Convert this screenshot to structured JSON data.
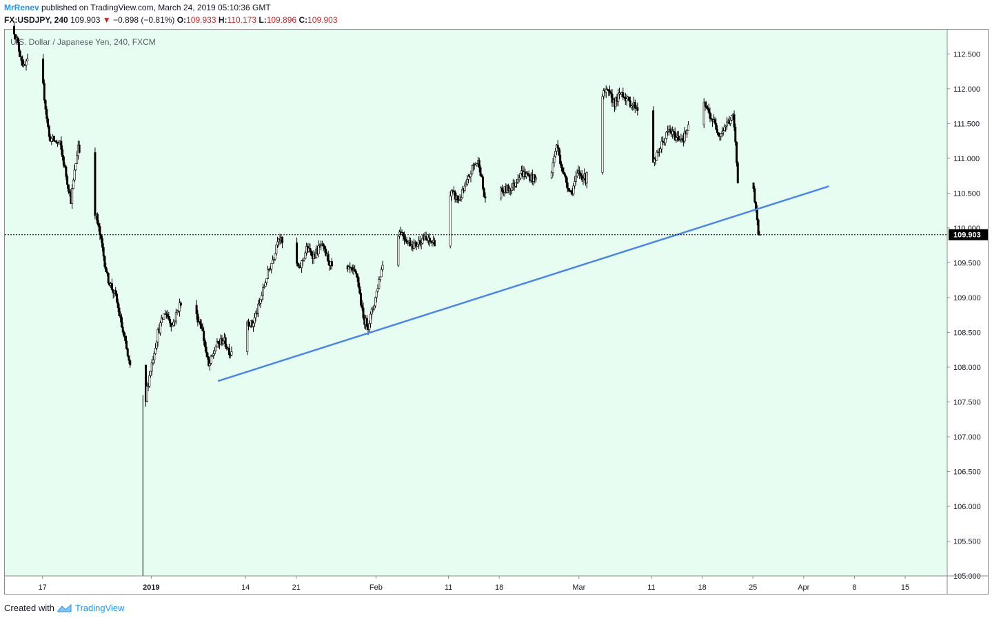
{
  "header": {
    "author": "MrRenev",
    "published": "published on TradingView.com, March 24, 2019 05:10:36 GMT"
  },
  "ohlc": {
    "symbol": "FX:USDJPY, 240",
    "last": "109.903",
    "arrow": "▼",
    "change": "−0.898 (−0.81%)",
    "o_label": "O:",
    "o": "109.933",
    "h_label": "H:",
    "h": "110.173",
    "l_label": "L:",
    "l": "109.896",
    "c_label": "C:",
    "c": "109.903"
  },
  "legend": "U.S. Dollar / Japanese Yen, 240, FXCM",
  "footer": {
    "created_with": "Created with",
    "brand": "TradingView"
  },
  "colors": {
    "background": "#e8fdf1",
    "candle": "#000000",
    "trendline": "#4a86e8",
    "price_tag": "#000000",
    "author": "#2196f3",
    "down": "#c62828"
  },
  "chart_data": {
    "type": "candlestick",
    "symbol": "USDJPY",
    "interval": "240",
    "current_price": 109.903,
    "price_label": "109.903",
    "ylim": [
      105.0,
      112.85
    ],
    "y_ticks": [
      "105.000",
      "105.500",
      "106.000",
      "106.500",
      "107.000",
      "107.500",
      "108.000",
      "108.500",
      "109.000",
      "109.500",
      "110.000",
      "110.500",
      "111.000",
      "111.500",
      "112.000",
      "112.500"
    ],
    "x_ticks": [
      {
        "label": "17",
        "day": -15
      },
      {
        "label": "2019",
        "day": 0
      },
      {
        "label": "14",
        "day": 13
      },
      {
        "label": "21",
        "day": 20
      },
      {
        "label": "Feb",
        "day": 31
      },
      {
        "label": "11",
        "day": 41
      },
      {
        "label": "18",
        "day": 48
      },
      {
        "label": "Mar",
        "day": 59
      },
      {
        "label": "11",
        "day": 69
      },
      {
        "label": "18",
        "day": 76
      },
      {
        "label": "25",
        "day": 83
      },
      {
        "label": "Apr",
        "day": 90
      },
      {
        "label": "8",
        "day": 97
      },
      {
        "label": "15",
        "day": 104
      }
    ],
    "xlim_days": [
      -20.2,
      109.8
    ],
    "trendline": {
      "start": {
        "day": 9.2,
        "price": 107.8
      },
      "end": {
        "day": 93.5,
        "price": 110.6
      }
    },
    "path": [
      {
        "day": -19,
        "price": 112.9
      },
      {
        "day": -17.5,
        "price": 112.3
      },
      {
        "day": -15.5,
        "price": 112.6
      },
      {
        "day": -14.8,
        "price": 112.0
      },
      {
        "day": -14,
        "price": 111.3
      },
      {
        "day": -12.5,
        "price": 111.2
      },
      {
        "day": -11,
        "price": 110.4
      },
      {
        "day": -10,
        "price": 111.2
      },
      {
        "day": -8.8,
        "price": 110.5
      },
      {
        "day": -8,
        "price": 110.4
      },
      {
        "day": -7,
        "price": 109.9
      },
      {
        "day": -6,
        "price": 109.3
      },
      {
        "day": -4.8,
        "price": 109.0
      },
      {
        "day": -1.9,
        "price": 107.5
      },
      {
        "day": -1.2,
        "price": 106.8
      },
      {
        "day": -0.5,
        "price": 107.7
      },
      {
        "day": 1,
        "price": 108.5
      },
      {
        "day": 2,
        "price": 108.8
      },
      {
        "day": 3,
        "price": 108.6
      },
      {
        "day": 4,
        "price": 108.9
      },
      {
        "day": 5,
        "price": 108.9
      },
      {
        "day": 6,
        "price": 108.8
      },
      {
        "day": 7,
        "price": 108.6
      },
      {
        "day": 8,
        "price": 108.0
      },
      {
        "day": 9,
        "price": 108.3
      },
      {
        "day": 10,
        "price": 108.4
      },
      {
        "day": 11,
        "price": 108.2
      },
      {
        "day": 12,
        "price": 108.5
      },
      {
        "day": 13,
        "price": 108.7
      },
      {
        "day": 14,
        "price": 108.6
      },
      {
        "day": 15,
        "price": 108.9
      },
      {
        "day": 16,
        "price": 109.3
      },
      {
        "day": 17,
        "price": 109.6
      },
      {
        "day": 17.6,
        "price": 109.9
      },
      {
        "day": 18.5,
        "price": 109.7
      },
      {
        "day": 19.5,
        "price": 109.6
      },
      {
        "day": 20.5,
        "price": 109.4
      },
      {
        "day": 21.5,
        "price": 109.7
      },
      {
        "day": 22.5,
        "price": 109.6
      },
      {
        "day": 23.5,
        "price": 109.75
      },
      {
        "day": 24.5,
        "price": 109.55
      },
      {
        "day": 25.5,
        "price": 109.3
      },
      {
        "day": 26.5,
        "price": 109.3
      },
      {
        "day": 27.5,
        "price": 109.4
      },
      {
        "day": 28.5,
        "price": 109.3
      },
      {
        "day": 29.3,
        "price": 108.7
      },
      {
        "day": 30,
        "price": 108.6
      },
      {
        "day": 30.8,
        "price": 108.9
      },
      {
        "day": 31.6,
        "price": 109.3
      },
      {
        "day": 32.5,
        "price": 109.7
      },
      {
        "day": 33.5,
        "price": 109.9
      },
      {
        "day": 34.5,
        "price": 109.95
      },
      {
        "day": 35.5,
        "price": 109.8
      },
      {
        "day": 36.5,
        "price": 109.75
      },
      {
        "day": 37.5,
        "price": 109.85
      },
      {
        "day": 38.5,
        "price": 109.8
      },
      {
        "day": 39.5,
        "price": 109.8
      },
      {
        "day": 40.5,
        "price": 110.3
      },
      {
        "day": 41.5,
        "price": 110.5
      },
      {
        "day": 42.5,
        "price": 110.4
      },
      {
        "day": 43.5,
        "price": 110.6
      },
      {
        "day": 44.5,
        "price": 110.9
      },
      {
        "day": 45.3,
        "price": 110.95
      },
      {
        "day": 46,
        "price": 110.45
      },
      {
        "day": 47,
        "price": 110.4
      },
      {
        "day": 48,
        "price": 110.5
      },
      {
        "day": 49,
        "price": 110.55
      },
      {
        "day": 50,
        "price": 110.6
      },
      {
        "day": 51,
        "price": 110.8
      },
      {
        "day": 52,
        "price": 110.75
      },
      {
        "day": 53,
        "price": 110.7
      },
      {
        "day": 54,
        "price": 110.7
      },
      {
        "day": 55,
        "price": 110.65
      },
      {
        "day": 56,
        "price": 111.2
      },
      {
        "day": 57,
        "price": 110.75
      },
      {
        "day": 58,
        "price": 110.5
      },
      {
        "day": 59,
        "price": 110.8
      },
      {
        "day": 60,
        "price": 110.7
      },
      {
        "day": 61,
        "price": 111.4
      },
      {
        "day": 62,
        "price": 111.9
      },
      {
        "day": 63,
        "price": 111.95
      },
      {
        "day": 64,
        "price": 111.8
      },
      {
        "day": 65,
        "price": 111.95
      },
      {
        "day": 66,
        "price": 111.8
      },
      {
        "day": 67,
        "price": 111.75
      },
      {
        "day": 68,
        "price": 111.5
      },
      {
        "day": 68.8,
        "price": 111.1
      },
      {
        "day": 69.5,
        "price": 110.95
      },
      {
        "day": 70.5,
        "price": 111.2
      },
      {
        "day": 71.5,
        "price": 111.4
      },
      {
        "day": 72.5,
        "price": 111.3
      },
      {
        "day": 73.5,
        "price": 111.3
      },
      {
        "day": 74.5,
        "price": 111.5
      },
      {
        "day": 75.5,
        "price": 111.8
      },
      {
        "day": 76.5,
        "price": 111.75
      },
      {
        "day": 77.5,
        "price": 111.55
      },
      {
        "day": 78.5,
        "price": 111.35
      },
      {
        "day": 79.5,
        "price": 111.5
      },
      {
        "day": 80.4,
        "price": 111.6
      },
      {
        "day": 81,
        "price": 110.7
      },
      {
        "day": 81.7,
        "price": 110.45
      },
      {
        "day": 82.4,
        "price": 110.85
      },
      {
        "day": 83,
        "price": 110.75
      },
      {
        "day": 83.5,
        "price": 110.2
      },
      {
        "day": 83.9,
        "price": 109.9
      }
    ]
  }
}
